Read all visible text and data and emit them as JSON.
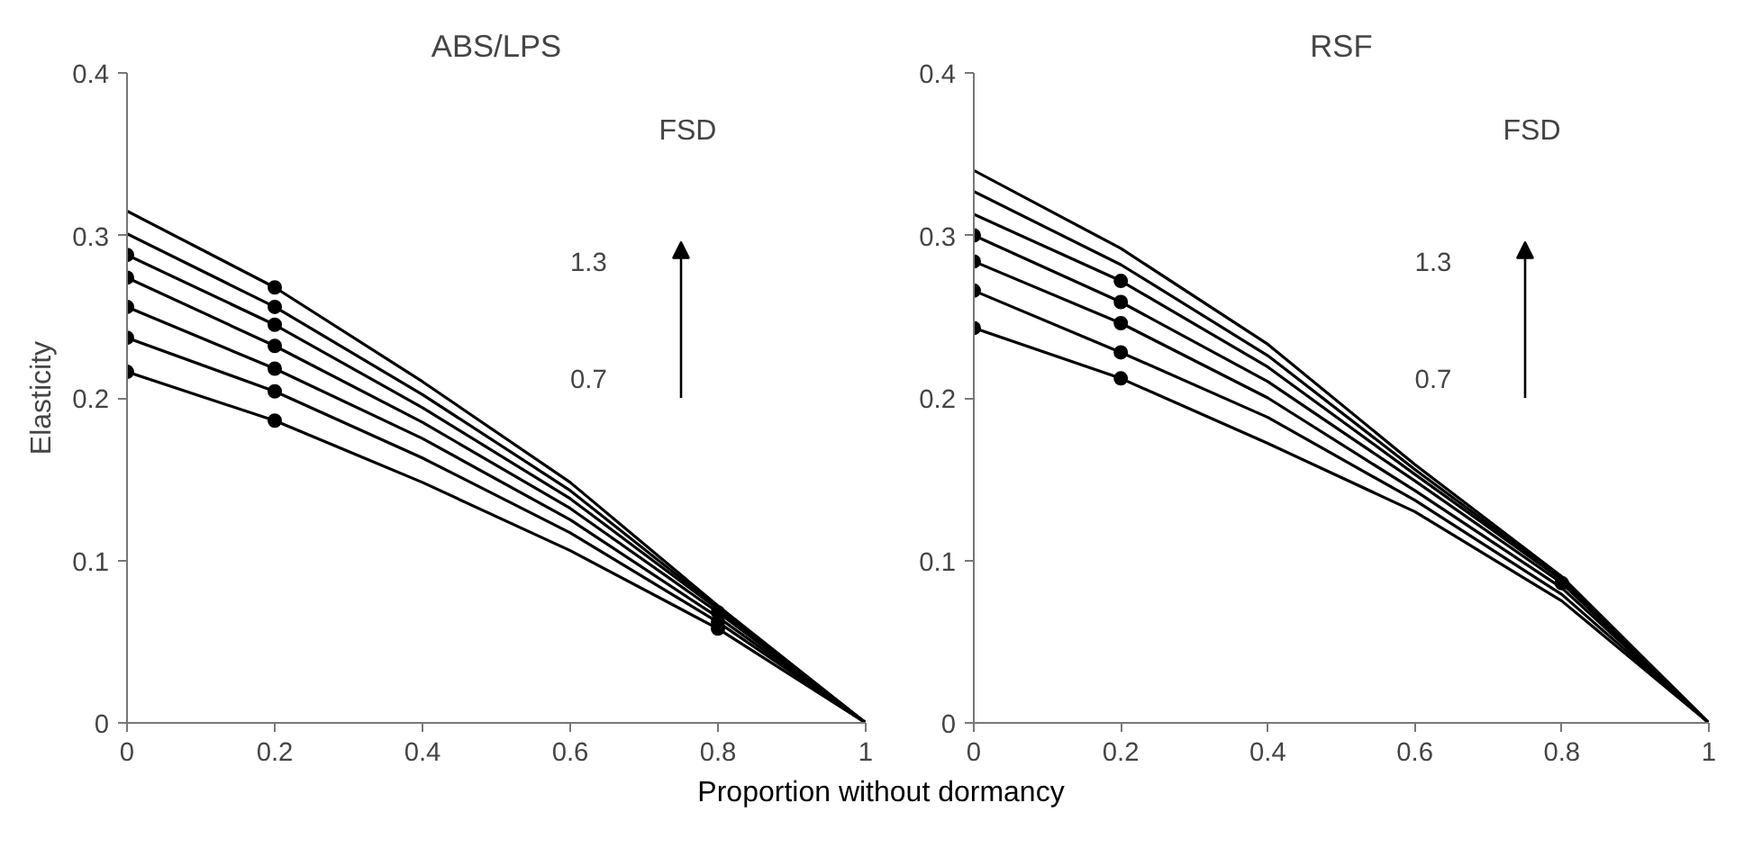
{
  "chart_data": [
    {
      "type": "line",
      "title": "ABS/LPS",
      "xlabel": "Proportion without dormancy",
      "ylabel": "Elasticity",
      "x": [
        0,
        0.2,
        0.4,
        0.6,
        0.8,
        1
      ],
      "xlim": [
        0,
        1
      ],
      "ylim": [
        0,
        0.4
      ],
      "xticks": [
        0,
        0.2,
        0.4,
        0.6,
        0.8,
        1
      ],
      "yticks": [
        0,
        0.1,
        0.2,
        0.3,
        0.4
      ],
      "grid": false,
      "line_style": "solid",
      "annotations": [
        "FSD",
        "1.3",
        "0.7"
      ],
      "series": [
        {
          "color": "#000000",
          "values": [
            0.315,
            0.268,
            0.21,
            0.148,
            0.072,
            0
          ]
        },
        {
          "color": "#000000",
          "values": [
            0.301,
            0.256,
            0.202,
            0.143,
            0.071,
            0
          ]
        },
        {
          "color": "#000000",
          "values": [
            0.288,
            0.245,
            0.194,
            0.138,
            0.07,
            0
          ]
        },
        {
          "color": "#000000",
          "values": [
            0.274,
            0.232,
            0.185,
            0.132,
            0.068,
            0
          ]
        },
        {
          "color": "#000000",
          "values": [
            0.256,
            0.218,
            0.175,
            0.125,
            0.065,
            0
          ]
        },
        {
          "color": "#000000",
          "values": [
            0.237,
            0.204,
            0.163,
            0.117,
            0.062,
            0
          ]
        },
        {
          "color": "#000000",
          "values": [
            0.216,
            0.186,
            0.148,
            0.106,
            0.058,
            0
          ]
        },
        {
          "type": "scatter",
          "color": "#000000",
          "x": [
            0,
            0,
            0,
            0,
            0,
            0.2,
            0.2,
            0.2,
            0.2,
            0.2,
            0.2,
            0.2,
            0.8,
            0.8,
            0.8
          ],
          "values": [
            0.288,
            0.274,
            0.256,
            0.237,
            0.216,
            0.268,
            0.256,
            0.245,
            0.232,
            0.218,
            0.204,
            0.186,
            0.068,
            0.062,
            0.058
          ]
        }
      ]
    },
    {
      "type": "line",
      "title": "RSF",
      "x": [
        0,
        0.2,
        0.4,
        0.6,
        0.8,
        1
      ],
      "xlim": [
        0,
        1
      ],
      "ylim": [
        0,
        0.4
      ],
      "xticks": [
        0,
        0.2,
        0.4,
        0.6,
        0.8,
        1
      ],
      "yticks": [
        0,
        0.1,
        0.2,
        0.3,
        0.4
      ],
      "grid": false,
      "line_style": "solid",
      "annotations": [
        "FSD",
        "1.3",
        "0.7"
      ],
      "series": [
        {
          "color": "#000000",
          "values": [
            0.34,
            0.292,
            0.233,
            0.159,
            0.09,
            0
          ]
        },
        {
          "color": "#000000",
          "values": [
            0.327,
            0.282,
            0.226,
            0.156,
            0.089,
            0
          ]
        },
        {
          "color": "#000000",
          "values": [
            0.313,
            0.272,
            0.219,
            0.153,
            0.088,
            0
          ]
        },
        {
          "color": "#000000",
          "values": [
            0.3,
            0.259,
            0.21,
            0.149,
            0.086,
            0
          ]
        },
        {
          "color": "#000000",
          "values": [
            0.284,
            0.246,
            0.2,
            0.143,
            0.083,
            0
          ]
        },
        {
          "color": "#000000",
          "values": [
            0.266,
            0.228,
            0.188,
            0.137,
            0.079,
            0
          ]
        },
        {
          "color": "#000000",
          "values": [
            0.243,
            0.212,
            0.172,
            0.13,
            0.075,
            0
          ]
        },
        {
          "type": "scatter",
          "color": "#000000",
          "x": [
            0,
            0,
            0,
            0,
            0.2,
            0.2,
            0.2,
            0.2,
            0.2,
            0.8
          ],
          "values": [
            0.3,
            0.284,
            0.266,
            0.243,
            0.272,
            0.259,
            0.246,
            0.228,
            0.212,
            0.086
          ]
        }
      ]
    }
  ]
}
